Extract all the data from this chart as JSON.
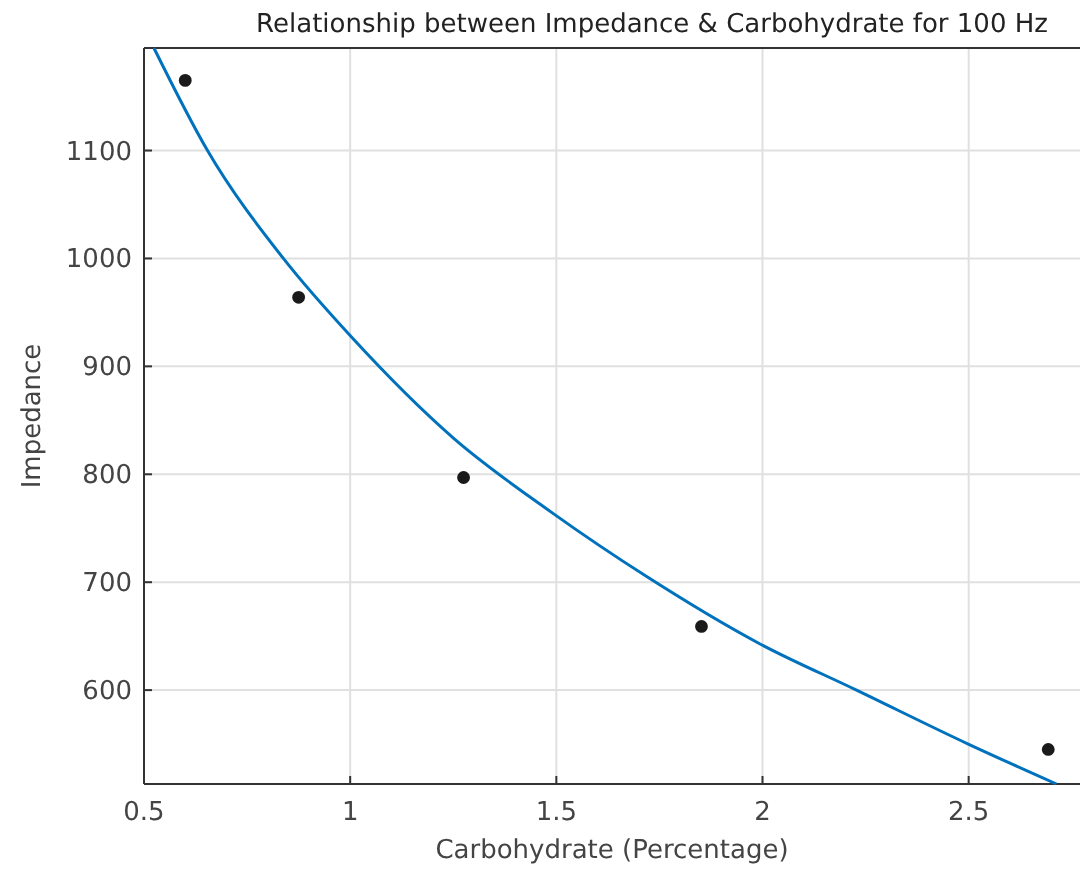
{
  "chart_data": {
    "type": "scatter",
    "title": "Relationship between Impedance & Carbohydrate for 100 Hz",
    "xlabel": "Carbohydrate (Percentage)",
    "ylabel": "Impedance",
    "xlim": [
      0.5,
      2.77
    ],
    "ylim": [
      513,
      1195
    ],
    "xticks": [
      0.5,
      1,
      1.5,
      2,
      2.5
    ],
    "yticks": [
      600,
      700,
      800,
      900,
      1000,
      1100
    ],
    "grid": true,
    "series": [
      {
        "type": "line",
        "color": "#0072bd",
        "x": [
          0.524,
          0.654,
          0.838,
          1.006,
          1.249,
          1.491,
          1.72,
          1.993,
          2.228,
          2.499,
          2.713
        ],
        "values": [
          1195,
          1100,
          1000,
          926,
          834,
          764,
          705,
          643,
          600,
          550,
          513
        ]
      },
      {
        "color": "#1a1a1a",
        "marker": "circle",
        "x": [
          0.6,
          0.875,
          1.275,
          1.852,
          2.693
        ],
        "values": [
          1165,
          964,
          797,
          659,
          545
        ]
      }
    ]
  }
}
